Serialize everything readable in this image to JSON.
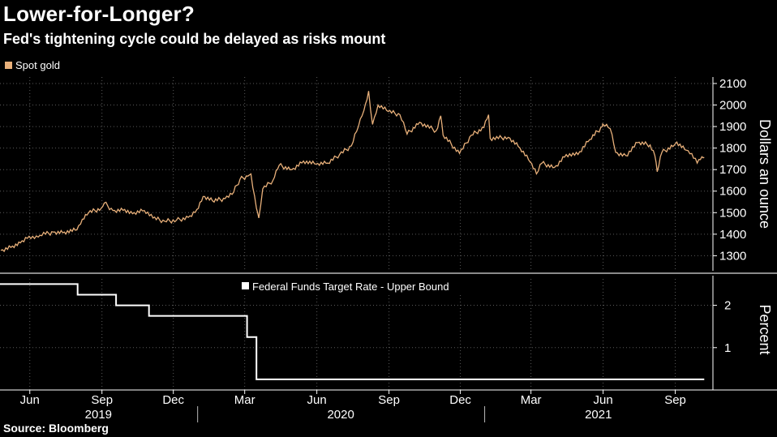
{
  "header": {
    "title": "Lower-for-Longer?",
    "subtitle": "Fed's tightening cycle could be delayed as risks mount"
  },
  "footer": {
    "source": "Source:  Bloomberg"
  },
  "colors": {
    "background": "#000000",
    "gold": "#e8b07a",
    "fed": "#ffffff",
    "grid": "#5a5a5a",
    "separator": "#8a8a8a"
  },
  "chart_data": [
    {
      "type": "line",
      "title": "",
      "series": [
        {
          "name": "Spot gold",
          "color": "#e8b07a",
          "points": [
            [
              "2019-04-25",
              1325
            ],
            [
              "2019-05-10",
              1345
            ],
            [
              "2019-05-20",
              1360
            ],
            [
              "2019-05-31",
              1390
            ],
            [
              "2019-06-07",
              1380
            ],
            [
              "2019-06-14",
              1395
            ],
            [
              "2019-06-21",
              1400
            ],
            [
              "2019-07-01",
              1410
            ],
            [
              "2019-07-15",
              1410
            ],
            [
              "2019-07-31",
              1420
            ],
            [
              "2019-08-07",
              1470
            ],
            [
              "2019-08-15",
              1500
            ],
            [
              "2019-08-31",
              1520
            ],
            [
              "2019-09-04",
              1545
            ],
            [
              "2019-09-15",
              1510
            ],
            [
              "2019-09-30",
              1515
            ],
            [
              "2019-10-10",
              1495
            ],
            [
              "2019-10-25",
              1510
            ],
            [
              "2019-11-05",
              1475
            ],
            [
              "2019-11-20",
              1460
            ],
            [
              "2019-12-05",
              1465
            ],
            [
              "2019-12-20",
              1478
            ],
            [
              "2019-12-31",
              1515
            ],
            [
              "2020-01-08",
              1575
            ],
            [
              "2020-01-20",
              1555
            ],
            [
              "2020-02-05",
              1565
            ],
            [
              "2020-02-14",
              1585
            ],
            [
              "2020-02-24",
              1655
            ],
            [
              "2020-03-05",
              1670
            ],
            [
              "2020-03-09",
              1680
            ],
            [
              "2020-03-16",
              1520
            ],
            [
              "2020-03-19",
              1475
            ],
            [
              "2020-03-24",
              1610
            ],
            [
              "2020-04-06",
              1650
            ],
            [
              "2020-04-14",
              1720
            ],
            [
              "2020-04-30",
              1700
            ],
            [
              "2020-05-15",
              1740
            ],
            [
              "2020-05-31",
              1725
            ],
            [
              "2020-06-15",
              1730
            ],
            [
              "2020-06-30",
              1770
            ],
            [
              "2020-07-15",
              1810
            ],
            [
              "2020-07-24",
              1900
            ],
            [
              "2020-07-31",
              1975
            ],
            [
              "2020-08-06",
              2065
            ],
            [
              "2020-08-11",
              1910
            ],
            [
              "2020-08-18",
              2000
            ],
            [
              "2020-08-31",
              1970
            ],
            [
              "2020-09-15",
              1955
            ],
            [
              "2020-09-24",
              1865
            ],
            [
              "2020-10-10",
              1920
            ],
            [
              "2020-10-31",
              1880
            ],
            [
              "2020-11-06",
              1950
            ],
            [
              "2020-11-09",
              1860
            ],
            [
              "2020-11-30",
              1775
            ],
            [
              "2020-12-15",
              1860
            ],
            [
              "2020-12-31",
              1895
            ],
            [
              "2021-01-06",
              1955
            ],
            [
              "2021-01-08",
              1845
            ],
            [
              "2021-01-31",
              1850
            ],
            [
              "2021-02-15",
              1800
            ],
            [
              "2021-02-28",
              1735
            ],
            [
              "2021-03-08",
              1680
            ],
            [
              "2021-03-15",
              1730
            ],
            [
              "2021-03-31",
              1710
            ],
            [
              "2021-04-15",
              1770
            ],
            [
              "2021-04-30",
              1770
            ],
            [
              "2021-05-15",
              1840
            ],
            [
              "2021-05-31",
              1900
            ],
            [
              "2021-06-01",
              1910
            ],
            [
              "2021-06-10",
              1890
            ],
            [
              "2021-06-17",
              1780
            ],
            [
              "2021-06-30",
              1765
            ],
            [
              "2021-07-15",
              1825
            ],
            [
              "2021-07-31",
              1815
            ],
            [
              "2021-08-06",
              1765
            ],
            [
              "2021-08-09",
              1690
            ],
            [
              "2021-08-15",
              1780
            ],
            [
              "2021-08-31",
              1815
            ],
            [
              "2021-09-03",
              1828
            ],
            [
              "2021-09-15",
              1790
            ],
            [
              "2021-09-22",
              1775
            ],
            [
              "2021-09-29",
              1730
            ],
            [
              "2021-10-05",
              1760
            ],
            [
              "2021-10-08",
              1757
            ]
          ]
        }
      ],
      "xlim": [
        "2019-04-24",
        "2021-10-18"
      ],
      "x_tick_labels": [
        {
          "label": "Jun",
          "date": "2019-06-01"
        },
        {
          "label": "Sep",
          "date": "2019-09-01"
        },
        {
          "label": "Dec",
          "date": "2019-12-01"
        },
        {
          "label": "Mar",
          "date": "2020-03-01"
        },
        {
          "label": "Jun",
          "date": "2020-06-01"
        },
        {
          "label": "Sep",
          "date": "2020-09-01"
        },
        {
          "label": "Dec",
          "date": "2020-12-01"
        },
        {
          "label": "Mar",
          "date": "2021-03-01"
        },
        {
          "label": "Jun",
          "date": "2021-06-01"
        },
        {
          "label": "Sep",
          "date": "2021-09-01"
        }
      ],
      "year_labels": [
        {
          "label": "2019",
          "start": "2019-04-24",
          "end": "2019-12-31"
        },
        {
          "label": "2020",
          "start": "2020-01-01",
          "end": "2020-12-31"
        },
        {
          "label": "2021",
          "start": "2021-01-01",
          "end": "2021-10-18"
        }
      ],
      "ylim": [
        1230,
        2130
      ],
      "y_ticks": [
        1300,
        1400,
        1500,
        1600,
        1700,
        1800,
        1900,
        2000,
        2100
      ],
      "ylabel": "Dollars an ounce",
      "xlabel": "",
      "legend": {
        "position": "top-left",
        "items": [
          "Spot gold"
        ]
      },
      "grid": true
    },
    {
      "type": "line",
      "title": "",
      "series": [
        {
          "name": "Federal Funds Target Rate - Upper Bound",
          "color": "#ffffff",
          "step": true,
          "points": [
            [
              "2019-04-24",
              2.5
            ],
            [
              "2019-08-01",
              2.25
            ],
            [
              "2019-09-19",
              2.0
            ],
            [
              "2019-10-31",
              1.75
            ],
            [
              "2020-03-04",
              1.25
            ],
            [
              "2020-03-16",
              0.25
            ],
            [
              "2021-10-08",
              0.25
            ]
          ]
        }
      ],
      "xlim": [
        "2019-04-24",
        "2021-10-18"
      ],
      "ylim": [
        0,
        2.7
      ],
      "y_ticks": [
        1,
        2
      ],
      "ylabel": "Percent",
      "xlabel": "",
      "legend": {
        "position": "top-center",
        "items": [
          "Federal Funds Target Rate - Upper Bound"
        ]
      },
      "grid": true
    }
  ]
}
